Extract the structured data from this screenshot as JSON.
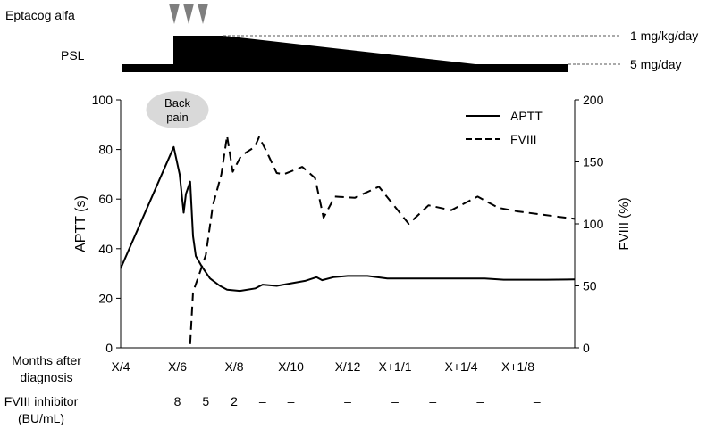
{
  "top_panel": {
    "eptacog_label": "Eptacog alfa",
    "eptacog_dose_count": 3,
    "psl_label": "PSL",
    "psl_high_label": "1 mg/kg/day",
    "psl_low_label": "5 mg/day"
  },
  "chart_data": {
    "type": "line",
    "x_tick_labels": [
      "X/4",
      "X/6",
      "X/8",
      "X/10",
      "X/12",
      "X+1/1",
      "X+1/4",
      "X+1/8"
    ],
    "x_ticks_month": [
      0,
      2,
      4,
      6,
      8,
      9.67,
      12,
      14
    ],
    "xlim": [
      0,
      16
    ],
    "xlabel": "Months after diagnosis",
    "ylabel_left": "APTT (s)",
    "ylim_left": [
      0,
      100
    ],
    "yticks_left": [
      0,
      20,
      40,
      60,
      80,
      100
    ],
    "ylabel_right": "FVIII (%)",
    "ylim_right": [
      0,
      200
    ],
    "yticks_right": [
      0,
      50,
      100,
      150,
      200
    ],
    "legend_position": "top-right",
    "annotation": {
      "text_line1": "Back",
      "text_line2": "pain",
      "month": 2,
      "apt_value": 96
    },
    "series": [
      {
        "name": "APTT",
        "axis": "left",
        "style": "solid",
        "points": [
          [
            0,
            32
          ],
          [
            1.87,
            81
          ],
          [
            2.08,
            70
          ],
          [
            2.22,
            54.5
          ],
          [
            2.3,
            62
          ],
          [
            2.45,
            67
          ],
          [
            2.55,
            45
          ],
          [
            2.65,
            37
          ],
          [
            2.85,
            33
          ],
          [
            3.15,
            28
          ],
          [
            3.5,
            25
          ],
          [
            3.75,
            23.5
          ],
          [
            4.2,
            23
          ],
          [
            4.75,
            24
          ],
          [
            5.0,
            25.5
          ],
          [
            5.5,
            25
          ],
          [
            6.5,
            27
          ],
          [
            6.9,
            28.5
          ],
          [
            7.1,
            27.3
          ],
          [
            7.5,
            28.5
          ],
          [
            8.0,
            29
          ],
          [
            8.7,
            29
          ],
          [
            9.4,
            28
          ],
          [
            11.0,
            28
          ],
          [
            12.83,
            28
          ],
          [
            13.5,
            27.5
          ],
          [
            15.0,
            27.5
          ],
          [
            16.0,
            27.6
          ]
        ]
      },
      {
        "name": "FVIII",
        "axis": "right",
        "style": "dashed",
        "points": [
          [
            2.45,
            3
          ],
          [
            2.55,
            45
          ],
          [
            2.75,
            58
          ],
          [
            3.0,
            75
          ],
          [
            3.25,
            115
          ],
          [
            3.55,
            140
          ],
          [
            3.75,
            171
          ],
          [
            3.95,
            142
          ],
          [
            4.25,
            155
          ],
          [
            4.72,
            162
          ],
          [
            4.88,
            170
          ],
          [
            5.15,
            158
          ],
          [
            5.5,
            141
          ],
          [
            5.75,
            140
          ],
          [
            6.4,
            146
          ],
          [
            6.85,
            137
          ],
          [
            7.15,
            105
          ],
          [
            7.55,
            122
          ],
          [
            8.25,
            121
          ],
          [
            9.1,
            130
          ],
          [
            10.15,
            100
          ],
          [
            10.85,
            115
          ],
          [
            11.65,
            111
          ],
          [
            12.58,
            122
          ],
          [
            13.3,
            113
          ],
          [
            14.0,
            110
          ],
          [
            16.0,
            104
          ]
        ]
      }
    ]
  },
  "fviii_inhibitor": {
    "label_line1": "FVIII inhibitor",
    "label_line2": "(BU/mL)",
    "values": [
      {
        "text": "8",
        "month": 2
      },
      {
        "text": "5",
        "month": 3
      },
      {
        "text": "2",
        "month": 4
      },
      {
        "text": "–",
        "month": 5
      },
      {
        "text": "–",
        "month": 6
      },
      {
        "text": "–",
        "month": 8
      },
      {
        "text": "–",
        "month": 9.67
      },
      {
        "text": "–",
        "month": 11
      },
      {
        "text": "–",
        "month": 12.67
      },
      {
        "text": "–",
        "month": 14.67
      }
    ]
  },
  "colors": {
    "line": "#000000",
    "marker": "#7f7f7f",
    "annotation_fill": "#d9d9d9",
    "guide_line": "#555555"
  }
}
